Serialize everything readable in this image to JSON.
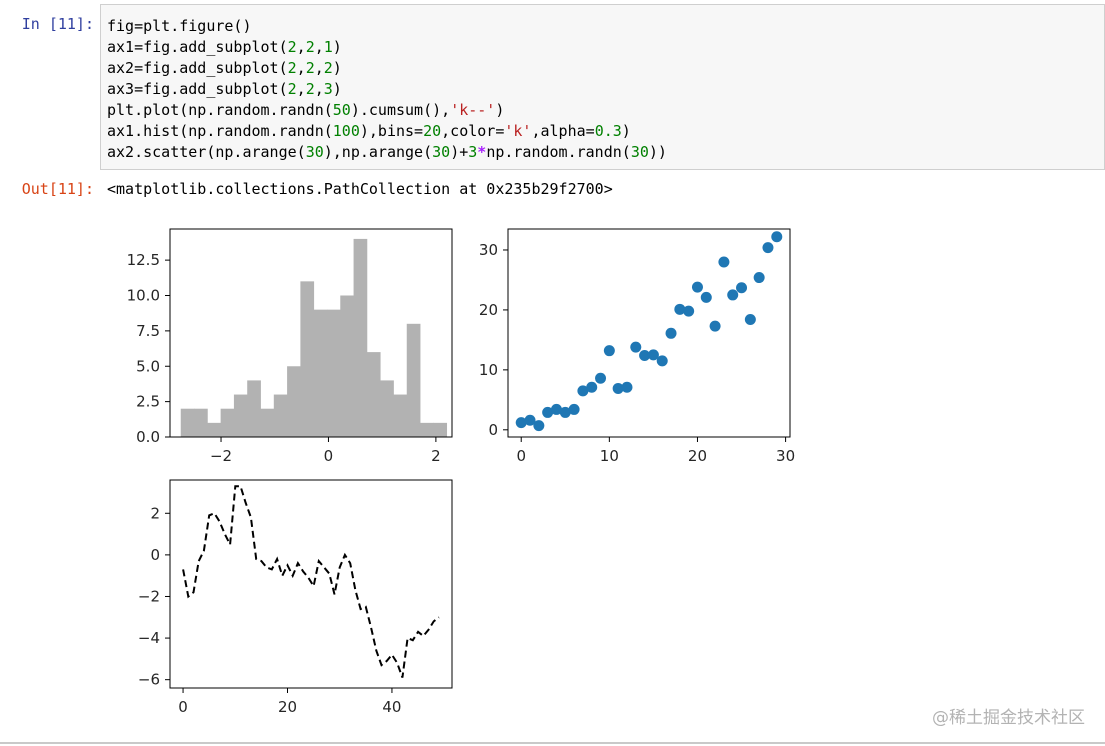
{
  "cell": {
    "in_prompt": "In  [11]:",
    "out_prompt": "Out[11]:",
    "code_lines": [
      [
        {
          "t": "fig=plt.figure()",
          "c": ""
        }
      ],
      [
        {
          "t": "ax1=fig.add_subplot(",
          "c": ""
        },
        {
          "t": "2",
          "c": "num"
        },
        {
          "t": ",",
          "c": ""
        },
        {
          "t": "2",
          "c": "num"
        },
        {
          "t": ",",
          "c": ""
        },
        {
          "t": "1",
          "c": "num"
        },
        {
          "t": ")",
          "c": ""
        }
      ],
      [
        {
          "t": "ax2=fig.add_subplot(",
          "c": ""
        },
        {
          "t": "2",
          "c": "num"
        },
        {
          "t": ",",
          "c": ""
        },
        {
          "t": "2",
          "c": "num"
        },
        {
          "t": ",",
          "c": ""
        },
        {
          "t": "2",
          "c": "num"
        },
        {
          "t": ")",
          "c": ""
        }
      ],
      [
        {
          "t": "ax3=fig.add_subplot(",
          "c": ""
        },
        {
          "t": "2",
          "c": "num"
        },
        {
          "t": ",",
          "c": ""
        },
        {
          "t": "2",
          "c": "num"
        },
        {
          "t": ",",
          "c": ""
        },
        {
          "t": "3",
          "c": "num"
        },
        {
          "t": ")",
          "c": ""
        }
      ],
      [
        {
          "t": "plt.plot(np.random.randn(",
          "c": ""
        },
        {
          "t": "50",
          "c": "num"
        },
        {
          "t": ").cumsum(),",
          "c": ""
        },
        {
          "t": "'k--'",
          "c": "str"
        },
        {
          "t": ")",
          "c": ""
        }
      ],
      [
        {
          "t": "ax1.hist(np.random.randn(",
          "c": ""
        },
        {
          "t": "100",
          "c": "num"
        },
        {
          "t": "),bins=",
          "c": ""
        },
        {
          "t": "20",
          "c": "num"
        },
        {
          "t": ",color=",
          "c": ""
        },
        {
          "t": "'k'",
          "c": "str"
        },
        {
          "t": ",alpha=",
          "c": ""
        },
        {
          "t": "0.3",
          "c": "num"
        },
        {
          "t": ")",
          "c": ""
        }
      ],
      [
        {
          "t": "ax2.scatter(np.arange(",
          "c": ""
        },
        {
          "t": "30",
          "c": "num"
        },
        {
          "t": "),np.arange(",
          "c": ""
        },
        {
          "t": "30",
          "c": "num"
        },
        {
          "t": ")+",
          "c": ""
        },
        {
          "t": "3",
          "c": "num"
        },
        {
          "t": "*",
          "c": "op"
        },
        {
          "t": "np.random.randn(",
          "c": ""
        },
        {
          "t": "30",
          "c": "num"
        },
        {
          "t": "))",
          "c": ""
        }
      ]
    ],
    "output_text": "<matplotlib.collections.PathCollection at 0x235b29f2700>"
  },
  "colors": {
    "hist_bar": "#b2b2b2",
    "scatter_point": "#1f77b4",
    "line": "#000000",
    "axes": "#000000"
  },
  "chart_data": [
    {
      "type": "bar",
      "subtype": "histogram",
      "xlim": [
        -2.95,
        2.3
      ],
      "ylim": [
        0,
        14.7
      ],
      "xticks": [
        -2,
        0,
        2
      ],
      "yticks": [
        0.0,
        2.5,
        5.0,
        7.5,
        10.0,
        12.5
      ],
      "xtick_labels": [
        "−2",
        "0",
        "2"
      ],
      "ytick_labels": [
        "0.0",
        "2.5",
        "5.0",
        "7.5",
        "10.0",
        "12.5"
      ],
      "bin_start": -2.75,
      "bin_width": 0.2475,
      "values": [
        2,
        2,
        1,
        2,
        3,
        4,
        2,
        3,
        5,
        11,
        9,
        9,
        10,
        14,
        6,
        4,
        3,
        8,
        1,
        1
      ]
    },
    {
      "type": "scatter",
      "xlim": [
        -1.5,
        30.5
      ],
      "ylim": [
        -1.2,
        33.5
      ],
      "xticks": [
        0,
        10,
        20,
        30
      ],
      "yticks": [
        0,
        10,
        20,
        30
      ],
      "xtick_labels": [
        "0",
        "10",
        "20",
        "30"
      ],
      "ytick_labels": [
        "0",
        "10",
        "20",
        "30"
      ],
      "x": [
        0,
        1,
        2,
        3,
        4,
        5,
        6,
        7,
        8,
        9,
        10,
        11,
        12,
        13,
        14,
        15,
        16,
        17,
        18,
        19,
        20,
        21,
        22,
        23,
        24,
        25,
        26,
        27,
        28,
        29
      ],
      "y": [
        1.2,
        1.6,
        0.7,
        2.9,
        3.4,
        2.9,
        3.4,
        6.5,
        7.1,
        8.6,
        13.2,
        6.9,
        7.1,
        13.8,
        12.4,
        12.5,
        11.5,
        16.1,
        20.1,
        19.8,
        23.8,
        22.1,
        17.3,
        28.0,
        22.5,
        23.7,
        18.4,
        25.4,
        30.4,
        32.2
      ]
    },
    {
      "type": "line",
      "style": "dashed",
      "xlim": [
        -2.5,
        51.5
      ],
      "ylim": [
        -6.4,
        3.6
      ],
      "xticks": [
        0,
        20,
        40
      ],
      "yticks": [
        -6,
        -4,
        -2,
        0,
        2
      ],
      "xtick_labels": [
        "0",
        "20",
        "40"
      ],
      "ytick_labels": [
        "−6",
        "−4",
        "−2",
        "0",
        "2"
      ],
      "x": [
        0,
        1,
        2,
        3,
        4,
        5,
        6,
        7,
        8,
        9,
        10,
        11,
        12,
        13,
        14,
        15,
        16,
        17,
        18,
        19,
        20,
        21,
        22,
        23,
        24,
        25,
        26,
        27,
        28,
        29,
        30,
        31,
        32,
        33,
        34,
        35,
        36,
        37,
        38,
        39,
        40,
        41,
        42,
        43,
        44,
        45,
        46,
        47,
        48,
        49
      ],
      "y": [
        -0.7,
        -2.0,
        -1.8,
        -0.3,
        0.2,
        1.9,
        2.0,
        1.6,
        1.0,
        0.5,
        3.3,
        3.3,
        2.5,
        1.8,
        -0.2,
        -0.3,
        -0.6,
        -0.7,
        -0.2,
        -1.0,
        -0.5,
        -1.0,
        -0.4,
        -0.8,
        -1.1,
        -1.5,
        -0.3,
        -0.6,
        -0.9,
        -1.9,
        -0.6,
        0.0,
        -0.4,
        -1.7,
        -2.6,
        -2.5,
        -3.5,
        -4.6,
        -5.3,
        -5.1,
        -4.8,
        -5.2,
        -5.9,
        -4.0,
        -4.1,
        -3.7,
        -3.9,
        -3.6,
        -3.2,
        -3.0
      ]
    }
  ],
  "watermark": "@稀土掘金技术社区"
}
